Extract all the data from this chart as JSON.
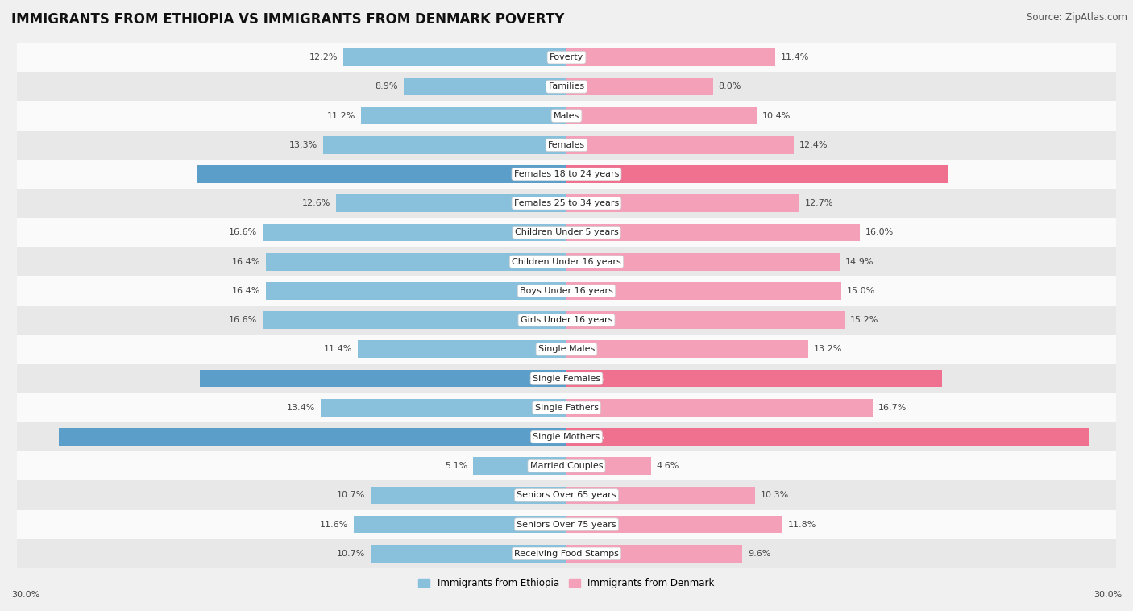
{
  "title": "IMMIGRANTS FROM ETHIOPIA VS IMMIGRANTS FROM DENMARK POVERTY",
  "source": "Source: ZipAtlas.com",
  "categories": [
    "Poverty",
    "Families",
    "Males",
    "Females",
    "Females 18 to 24 years",
    "Females 25 to 34 years",
    "Children Under 5 years",
    "Children Under 16 years",
    "Boys Under 16 years",
    "Girls Under 16 years",
    "Single Males",
    "Single Females",
    "Single Fathers",
    "Single Mothers",
    "Married Couples",
    "Seniors Over 65 years",
    "Seniors Over 75 years",
    "Receiving Food Stamps"
  ],
  "ethiopia_values": [
    12.2,
    8.9,
    11.2,
    13.3,
    20.2,
    12.6,
    16.6,
    16.4,
    16.4,
    16.6,
    11.4,
    20.0,
    13.4,
    27.7,
    5.1,
    10.7,
    11.6,
    10.7
  ],
  "denmark_values": [
    11.4,
    8.0,
    10.4,
    12.4,
    20.8,
    12.7,
    16.0,
    14.9,
    15.0,
    15.2,
    13.2,
    20.5,
    16.7,
    28.5,
    4.6,
    10.3,
    11.8,
    9.6
  ],
  "ethiopia_color": "#89c0dc",
  "denmark_color": "#f4a0b8",
  "highlight_rows": [
    4,
    11,
    13
  ],
  "highlight_eth_color": "#5b9ec9",
  "highlight_den_color": "#f07090",
  "bar_height": 0.6,
  "xlim": 30.0,
  "label_eth": "Immigrants from Ethiopia",
  "label_den": "Immigrants from Denmark",
  "bg_color": "#f0f0f0",
  "row_bg_light": "#fafafa",
  "row_bg_dark": "#e8e8e8",
  "title_fontsize": 12,
  "source_fontsize": 8.5,
  "value_fontsize": 8,
  "category_fontsize": 8,
  "axis_label_fontsize": 8
}
